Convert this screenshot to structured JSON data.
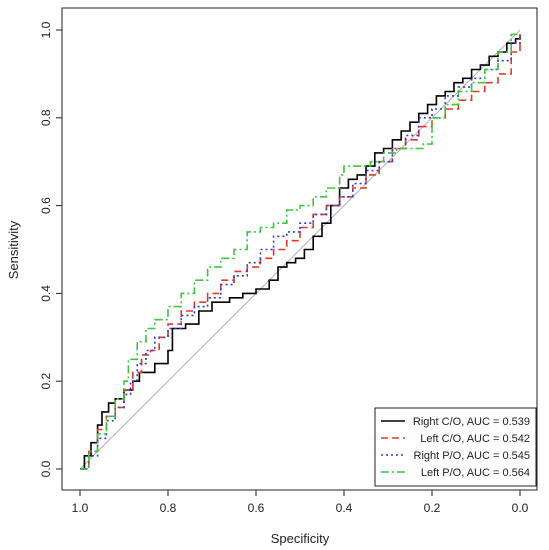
{
  "chart_data": {
    "type": "line",
    "title": "",
    "xlabel": "Specificity",
    "ylabel": "Sensitivity",
    "xlim": [
      1.0,
      0.0
    ],
    "ylim": [
      0.0,
      1.0
    ],
    "x_reversed": true,
    "grid": false,
    "legend_position": "bottom-right",
    "x_ticks": [
      "1.0",
      "0.8",
      "0.6",
      "0.4",
      "0.2",
      "0.0"
    ],
    "y_ticks": [
      "0.0",
      "0.2",
      "0.4",
      "0.6",
      "0.8",
      "1.0"
    ],
    "reference_line": {
      "from": [
        1.0,
        0.0
      ],
      "to": [
        0.0,
        1.0
      ],
      "color": "#b0b0b0"
    },
    "series": [
      {
        "name": "Right C/O, AUC = 0.539",
        "color": "#000000",
        "dash": "solid",
        "specificity": [
          1.0,
          0.99,
          0.975,
          0.96,
          0.95,
          0.935,
          0.92,
          0.9,
          0.88,
          0.865,
          0.85,
          0.83,
          0.8,
          0.79,
          0.79,
          0.76,
          0.73,
          0.7,
          0.66,
          0.63,
          0.6,
          0.57,
          0.55,
          0.53,
          0.51,
          0.49,
          0.47,
          0.45,
          0.43,
          0.41,
          0.39,
          0.37,
          0.35,
          0.33,
          0.31,
          0.29,
          0.27,
          0.25,
          0.23,
          0.21,
          0.19,
          0.17,
          0.15,
          0.13,
          0.11,
          0.09,
          0.07,
          0.05,
          0.03,
          0.01,
          0.0
        ],
        "sensitivity": [
          0.0,
          0.03,
          0.06,
          0.1,
          0.13,
          0.15,
          0.16,
          0.18,
          0.2,
          0.22,
          0.22,
          0.24,
          0.27,
          0.3,
          0.32,
          0.33,
          0.36,
          0.38,
          0.39,
          0.4,
          0.41,
          0.43,
          0.46,
          0.47,
          0.48,
          0.5,
          0.53,
          0.56,
          0.6,
          0.64,
          0.66,
          0.67,
          0.69,
          0.72,
          0.73,
          0.75,
          0.77,
          0.79,
          0.81,
          0.83,
          0.85,
          0.86,
          0.88,
          0.89,
          0.91,
          0.92,
          0.94,
          0.95,
          0.97,
          0.98,
          0.99
        ]
      },
      {
        "name": "Left C/O, AUC = 0.542",
        "color": "#e8382a",
        "dash": "dashed",
        "specificity": [
          1.0,
          0.98,
          0.96,
          0.94,
          0.92,
          0.9,
          0.88,
          0.86,
          0.84,
          0.82,
          0.8,
          0.77,
          0.74,
          0.71,
          0.68,
          0.65,
          0.62,
          0.59,
          0.56,
          0.53,
          0.5,
          0.47,
          0.44,
          0.41,
          0.38,
          0.35,
          0.32,
          0.29,
          0.26,
          0.23,
          0.2,
          0.17,
          0.14,
          0.11,
          0.08,
          0.05,
          0.02,
          0.0
        ],
        "sensitivity": [
          0.0,
          0.04,
          0.09,
          0.12,
          0.14,
          0.18,
          0.22,
          0.26,
          0.27,
          0.3,
          0.33,
          0.36,
          0.38,
          0.4,
          0.43,
          0.45,
          0.46,
          0.48,
          0.5,
          0.52,
          0.55,
          0.58,
          0.6,
          0.62,
          0.64,
          0.67,
          0.7,
          0.73,
          0.75,
          0.78,
          0.8,
          0.82,
          0.84,
          0.86,
          0.88,
          0.9,
          0.95,
          0.99
        ]
      },
      {
        "name": "Right P/O, AUC = 0.545",
        "color": "#2a3fd0",
        "dash": "dotted",
        "specificity": [
          1.0,
          0.98,
          0.96,
          0.94,
          0.92,
          0.9,
          0.885,
          0.87,
          0.85,
          0.83,
          0.8,
          0.77,
          0.74,
          0.71,
          0.68,
          0.65,
          0.62,
          0.59,
          0.56,
          0.53,
          0.5,
          0.47,
          0.44,
          0.41,
          0.38,
          0.35,
          0.32,
          0.29,
          0.26,
          0.23,
          0.2,
          0.17,
          0.14,
          0.11,
          0.08,
          0.05,
          0.02,
          0.0
        ],
        "sensitivity": [
          0.0,
          0.03,
          0.07,
          0.11,
          0.14,
          0.17,
          0.2,
          0.24,
          0.27,
          0.3,
          0.32,
          0.35,
          0.37,
          0.39,
          0.42,
          0.44,
          0.47,
          0.5,
          0.53,
          0.54,
          0.56,
          0.58,
          0.6,
          0.62,
          0.65,
          0.68,
          0.7,
          0.73,
          0.76,
          0.8,
          0.82,
          0.85,
          0.87,
          0.89,
          0.91,
          0.93,
          0.97,
          0.99
        ]
      },
      {
        "name": "Left P/O, AUC = 0.564",
        "color": "#3ec63e",
        "dash": "dashdot",
        "specificity": [
          1.0,
          0.98,
          0.96,
          0.94,
          0.92,
          0.9,
          0.89,
          0.87,
          0.85,
          0.83,
          0.8,
          0.77,
          0.74,
          0.71,
          0.68,
          0.65,
          0.62,
          0.59,
          0.56,
          0.53,
          0.5,
          0.47,
          0.44,
          0.41,
          0.4,
          0.37,
          0.34,
          0.31,
          0.28,
          0.25,
          0.22,
          0.2,
          0.17,
          0.14,
          0.11,
          0.08,
          0.05,
          0.02,
          0.0
        ],
        "sensitivity": [
          0.0,
          0.04,
          0.08,
          0.12,
          0.16,
          0.2,
          0.25,
          0.29,
          0.32,
          0.34,
          0.37,
          0.4,
          0.43,
          0.46,
          0.48,
          0.5,
          0.54,
          0.55,
          0.56,
          0.59,
          0.6,
          0.62,
          0.64,
          0.67,
          0.69,
          0.69,
          0.7,
          0.72,
          0.73,
          0.73,
          0.74,
          0.8,
          0.83,
          0.86,
          0.88,
          0.91,
          0.95,
          0.99,
          0.99
        ]
      }
    ]
  }
}
